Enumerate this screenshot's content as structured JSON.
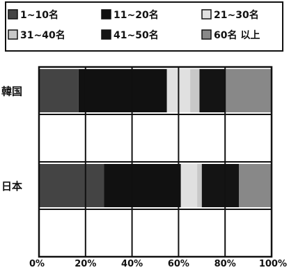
{
  "chart_data": {
    "type": "bar",
    "stacked": true,
    "orientation": "horizontal",
    "percent_scale": true,
    "categories": [
      "韓国",
      "日本"
    ],
    "series": [
      {
        "name": "1~10名",
        "values": [
          17,
          28
        ],
        "color": "#444444"
      },
      {
        "name": "11~20名",
        "values": [
          38,
          33
        ],
        "color": "#111111"
      },
      {
        "name": "21~30名",
        "values": [
          10,
          7
        ],
        "color": "#e0e0e0"
      },
      {
        "name": "31~40名",
        "values": [
          4,
          2
        ],
        "color": "#c8c8c8"
      },
      {
        "name": "41~50名",
        "values": [
          11,
          16
        ],
        "color": "#141414"
      },
      {
        "name": "60名 以上",
        "values": [
          20,
          14
        ],
        "color": "#888888"
      }
    ],
    "x_ticks": [
      "0%",
      "20%",
      "40%",
      "60%",
      "80%",
      "100%"
    ],
    "xlim": [
      0,
      100
    ],
    "legend_position": "top",
    "grid": true
  }
}
